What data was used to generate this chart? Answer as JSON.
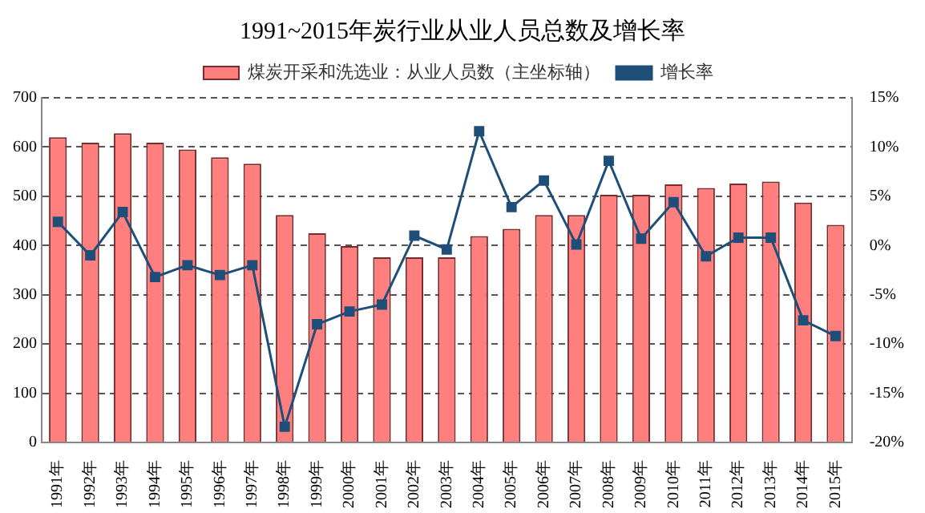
{
  "chart_data": {
    "type": "bar",
    "title": "1991~2015年炭行业从业人员总数及增长率",
    "categories": [
      "1991年",
      "1992年",
      "1993年",
      "1994年",
      "1995年",
      "1996年",
      "1997年",
      "1998年",
      "1999年",
      "2000年",
      "2001年",
      "2002年",
      "2003年",
      "2004年",
      "2005年",
      "2006年",
      "2007年",
      "2008年",
      "2009年",
      "2010年",
      "2011年",
      "2012年",
      "2013年",
      "2014年",
      "2015年"
    ],
    "series": [
      {
        "name": "煤炭开采和洗选业：从业人员数（主坐标轴）",
        "color": "#ff7f7f",
        "values": [
          620,
          609,
          628,
          609,
          595,
          579,
          566,
          462,
          425,
          399,
          376,
          376,
          376,
          419,
          434,
          462,
          462,
          503,
          503,
          524,
          517,
          526,
          530,
          487,
          442
        ]
      },
      {
        "type": "line",
        "axis": "y2",
        "name": "增长率",
        "color": "#1f4e79",
        "values": [
          2.4,
          -1.0,
          3.4,
          -3.2,
          -2.0,
          -3.0,
          -2.0,
          -18.4,
          -8.0,
          -6.7,
          -6.0,
          1.0,
          -0.4,
          11.6,
          3.9,
          6.6,
          0.1,
          8.6,
          0.7,
          4.4,
          -1.1,
          0.8,
          0.8,
          -7.6,
          -9.2
        ]
      }
    ],
    "ylim": [
      0,
      700
    ],
    "yticks": [
      0,
      100,
      200,
      300,
      400,
      500,
      600,
      700
    ],
    "y2lim": [
      -20,
      15
    ],
    "y2ticks": [
      {
        "value": -20,
        "label": "-20%"
      },
      {
        "value": -15,
        "label": "-15%"
      },
      {
        "value": -10,
        "label": "-10%"
      },
      {
        "value": -5,
        "label": "-5%"
      },
      {
        "value": 0,
        "label": "0%"
      },
      {
        "value": 5,
        "label": "5%"
      },
      {
        "value": 10,
        "label": "10%"
      },
      {
        "value": 15,
        "label": "15%"
      }
    ],
    "grid": "y",
    "legend": "top",
    "marker": "square"
  }
}
